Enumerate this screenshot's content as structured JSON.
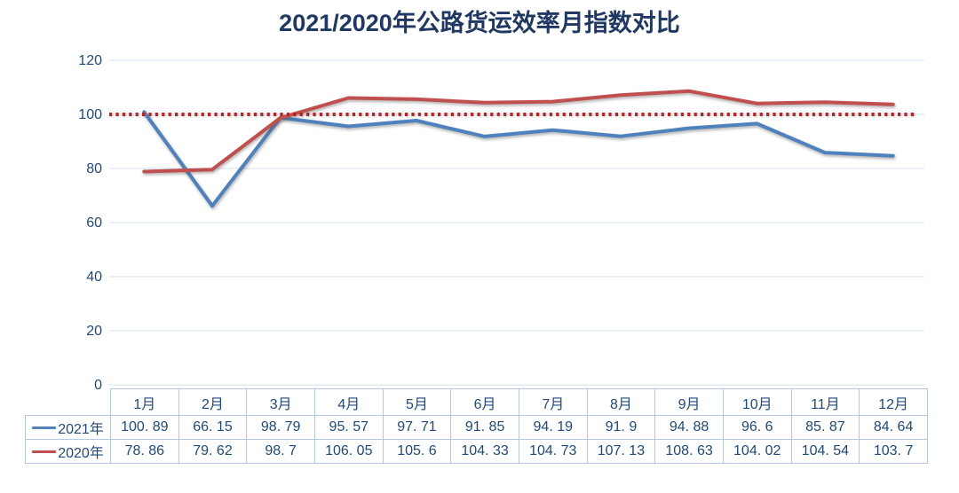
{
  "title": "2021/2020年公路货运效率月指数对比",
  "chart_data": {
    "type": "line",
    "categories": [
      "1月",
      "2月",
      "3月",
      "4月",
      "5月",
      "6月",
      "7月",
      "8月",
      "9月",
      "10月",
      "11月",
      "12月"
    ],
    "series": [
      {
        "name": "2021年",
        "color": "#4F81BD",
        "values": [
          100.89,
          66.15,
          98.79,
          95.57,
          97.71,
          91.85,
          94.19,
          91.9,
          94.88,
          96.6,
          85.87,
          84.64
        ]
      },
      {
        "name": "2020年",
        "color": "#C0504D",
        "values": [
          78.86,
          79.62,
          98.7,
          106.05,
          105.6,
          104.33,
          104.73,
          107.13,
          108.63,
          104.02,
          104.54,
          103.7
        ]
      }
    ],
    "reference_line": {
      "value": 100,
      "color": "#C02020",
      "style": "dotted"
    },
    "title": "2021/2020年公路货运效率月指数对比",
    "xlabel": "",
    "ylabel": "",
    "ylim": [
      0,
      120
    ],
    "yticks": [
      0,
      20,
      40,
      60,
      80,
      100,
      120
    ],
    "grid": true,
    "legend_position": "table-left"
  },
  "table": {
    "months": [
      "1月",
      "2月",
      "3月",
      "4月",
      "5月",
      "6月",
      "7月",
      "8月",
      "9月",
      "10月",
      "11月",
      "12月"
    ],
    "rows": [
      {
        "legend": "2021年",
        "swatch_color": "#4F81BD",
        "cells": [
          "100. 89",
          "66. 15",
          "98. 79",
          "95. 57",
          "97. 71",
          "91. 85",
          "94. 19",
          "91. 9",
          "94. 88",
          "96. 6",
          "85. 87",
          "84. 64"
        ]
      },
      {
        "legend": "2020年",
        "swatch_color": "#C0504D",
        "cells": [
          "78. 86",
          "79. 62",
          "98. 7",
          "106. 05",
          "105. 6",
          "104. 33",
          "104. 73",
          "107. 13",
          "108. 63",
          "104. 02",
          "104. 54",
          "103. 7"
        ]
      }
    ]
  },
  "colors": {
    "title_text": "#1F3864",
    "axis_text": "#1F497D",
    "table_text": "#1F497D",
    "table_border": "#B5C7E3",
    "gridline": "#D5E0F0",
    "series_2021": "#4F81BD",
    "series_2020": "#C0504D",
    "reference": "#C02020",
    "background": "#FFFFFF"
  }
}
